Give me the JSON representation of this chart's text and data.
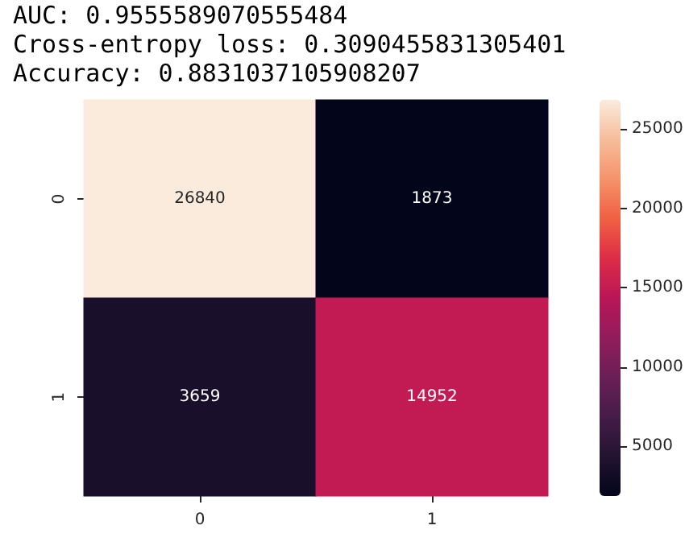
{
  "chart_data": {
    "type": "heatmap",
    "annotations": [
      "AUC: 0.9555589070555484",
      "Cross-entropy loss: 0.3090455831305401",
      "Accuracy: 0.8831037105908207"
    ],
    "categories": [
      "0",
      "1"
    ],
    "y_categories": [
      "0",
      "1"
    ],
    "cells": [
      [
        26840,
        1873
      ],
      [
        3659,
        14952
      ]
    ],
    "data_labels": true,
    "clim": [
      1873,
      26840
    ],
    "cticks": [
      5000,
      10000,
      15000,
      20000,
      25000
    ]
  }
}
